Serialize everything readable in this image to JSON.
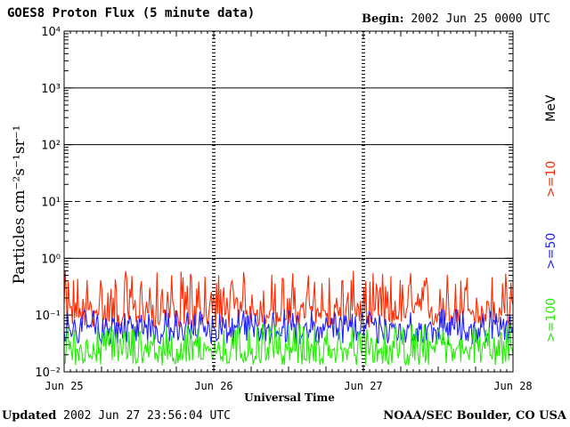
{
  "header": {
    "title": "GOES8 Proton Flux (5 minute data)",
    "begin_label": "Begin:",
    "begin_value": "2002 Jun 25 0000 UTC"
  },
  "footer": {
    "updated_label": "Updated",
    "updated_value": "2002 Jun 27 23:56:04 UTC",
    "source": "NOAA/SEC Boulder, CO USA"
  },
  "colors": {
    "ge10": "#ff2a00",
    "ge50": "#2020ff",
    "ge100": "#22ee00",
    "axis": "#000000"
  },
  "legend": {
    "unit": "MeV",
    "ge10": ">=10",
    "ge50": ">=50",
    "ge100": ">=100"
  },
  "chart_data": {
    "type": "line",
    "ylabel": "Particles cm⁻²s⁻¹sr⁻¹",
    "xlabel": "Universal Time",
    "yscale": "log",
    "ylim": [
      0.01,
      10000
    ],
    "y_ticks": [
      {
        "value": 0.01,
        "label": "10⁻²"
      },
      {
        "value": 0.1,
        "label": "10⁻¹"
      },
      {
        "value": 1,
        "label": "10⁰"
      },
      {
        "value": 10,
        "label": "10¹"
      },
      {
        "value": 100,
        "label": "10²"
      },
      {
        "value": 1000,
        "label": "10³"
      },
      {
        "value": 10000,
        "label": "10⁴"
      }
    ],
    "x_ticks": [
      "Jun 25",
      "Jun 26",
      "Jun 27",
      "Jun 28"
    ],
    "xlim_days": [
      0,
      3
    ],
    "reference_lines": [
      {
        "value": 10,
        "style": "dashed"
      },
      {
        "value": 1,
        "style": "solid"
      },
      {
        "value": 100,
        "style": "solid"
      },
      {
        "value": 1000,
        "style": "solid"
      }
    ],
    "series": [
      {
        "name": ">=10 MeV",
        "color": "#ff2a00",
        "typical": 0.12,
        "range": [
          0.06,
          0.6
        ]
      },
      {
        "name": ">=50 MeV",
        "color": "#2020ff",
        "typical": 0.06,
        "range": [
          0.03,
          0.13
        ]
      },
      {
        "name": ">=100 MeV",
        "color": "#22ee00",
        "typical": 0.025,
        "range": [
          0.013,
          0.07
        ]
      }
    ]
  }
}
